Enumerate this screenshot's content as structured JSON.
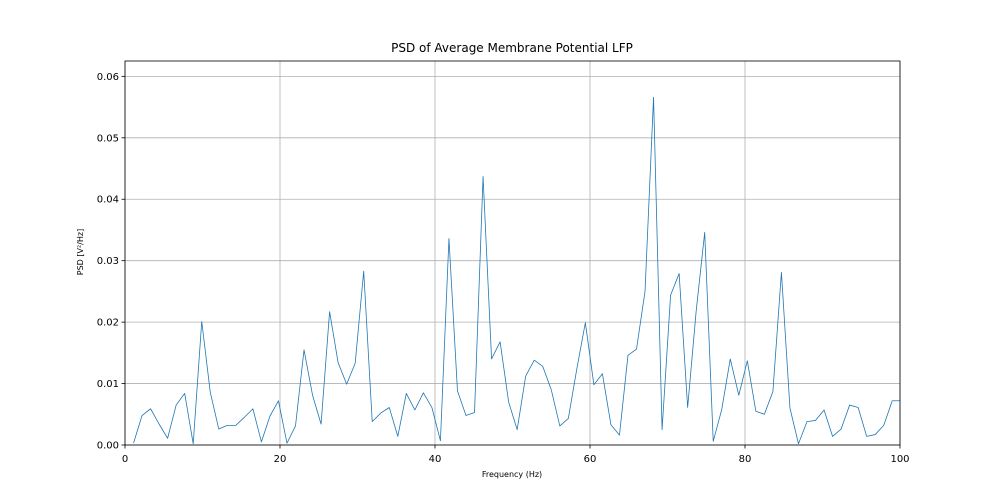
{
  "chart_data": {
    "type": "line",
    "title": "PSD of Average Membrane Potential LFP",
    "xlabel": "Frequency (Hz)",
    "ylabel": "PSD [V²/Hz]",
    "xlim": [
      0,
      100
    ],
    "ylim": [
      0,
      0.0625
    ],
    "x_ticks": [
      0,
      20,
      40,
      60,
      80,
      100
    ],
    "x_tick_labels": [
      "0",
      "20",
      "40",
      "60",
      "80",
      "100"
    ],
    "y_ticks": [
      0,
      0.01,
      0.02,
      0.03,
      0.04,
      0.05,
      0.06
    ],
    "y_tick_labels": [
      "0.00",
      "0.01",
      "0.02",
      "0.03",
      "0.04",
      "0.05",
      "0.06"
    ],
    "grid": true,
    "line_color": "#1f77b4",
    "series": [
      {
        "x": [
          1.1,
          2.2,
          3.3,
          4.4,
          5.5,
          6.6,
          7.7,
          8.8,
          9.9,
          11.0,
          12.1,
          13.2,
          14.3,
          15.4,
          16.5,
          17.6,
          18.7,
          19.8,
          20.9,
          22.0,
          23.1,
          24.2,
          25.3,
          26.4,
          27.5,
          28.6,
          29.7,
          30.8,
          31.9,
          33.0,
          34.1,
          35.2,
          36.3,
          37.4,
          38.5,
          39.6,
          40.7,
          41.8,
          42.9,
          44.0,
          45.1,
          46.2,
          47.3,
          48.4,
          49.5,
          50.6,
          51.7,
          52.8,
          53.9,
          55.0,
          56.1,
          57.2,
          58.3,
          59.4,
          60.5,
          61.6,
          62.7,
          63.8,
          64.9,
          66.0,
          67.1,
          68.2,
          69.3,
          70.4,
          71.5,
          72.6,
          73.7,
          74.8,
          75.9,
          77.0,
          78.1,
          79.2,
          80.3,
          81.4,
          82.5,
          83.6,
          84.7,
          85.8,
          86.9,
          88.0,
          89.1,
          90.2,
          91.3,
          92.4,
          93.5,
          94.6,
          95.7,
          96.8,
          97.9,
          99.0,
          100.0
        ],
        "y": [
          0.0003,
          0.0048,
          0.0059,
          0.0034,
          0.0011,
          0.0065,
          0.0084,
          0.0002,
          0.0201,
          0.0086,
          0.0026,
          0.0032,
          0.0032,
          0.0045,
          0.0059,
          0.0005,
          0.0047,
          0.0072,
          0.0003,
          0.0031,
          0.0155,
          0.0081,
          0.0034,
          0.0217,
          0.0134,
          0.0099,
          0.0133,
          0.0283,
          0.0038,
          0.0052,
          0.0061,
          0.0014,
          0.0084,
          0.0057,
          0.0085,
          0.0061,
          0.0007,
          0.0336,
          0.0088,
          0.0048,
          0.0053,
          0.0437,
          0.014,
          0.0168,
          0.007,
          0.0025,
          0.0112,
          0.0138,
          0.0128,
          0.009,
          0.0031,
          0.0043,
          0.0124,
          0.0199,
          0.0098,
          0.0116,
          0.0033,
          0.0016,
          0.0146,
          0.0156,
          0.025,
          0.0566,
          0.0025,
          0.0244,
          0.0279,
          0.0061,
          0.0218,
          0.0346,
          0.0006,
          0.0058,
          0.014,
          0.0081,
          0.0137,
          0.0055,
          0.005,
          0.0087,
          0.0281,
          0.006,
          0.0002,
          0.0038,
          0.004,
          0.0057,
          0.0014,
          0.0026,
          0.0065,
          0.0061,
          0.0014,
          0.0017,
          0.0032,
          0.0072,
          0.0072
        ]
      }
    ]
  }
}
